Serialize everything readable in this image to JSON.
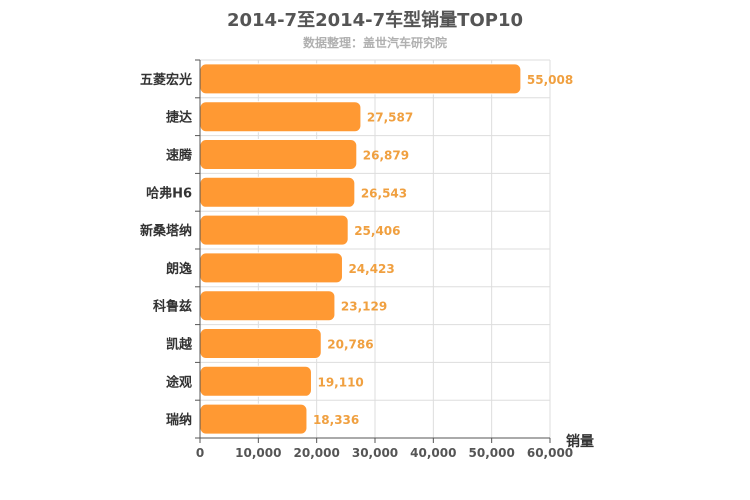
{
  "chart_data": {
    "type": "bar",
    "orientation": "horizontal",
    "title": "2014-7至2014-7车型销量TOP10",
    "subtitle": "数据整理：盖世汽车研究院",
    "xlabel": "销量",
    "ylabel": "",
    "categories": [
      "五菱宏光",
      "捷达",
      "速腾",
      "哈弗H6",
      "新桑塔纳",
      "朗逸",
      "科鲁兹",
      "凯越",
      "途观",
      "瑞纳"
    ],
    "values": [
      55008,
      27587,
      26879,
      26543,
      25406,
      24423,
      23129,
      20786,
      19110,
      18336
    ],
    "value_labels": [
      "55,008",
      "27,587",
      "26,879",
      "26,543",
      "25,406",
      "24,423",
      "23,129",
      "20,786",
      "19,110",
      "18,336"
    ],
    "xlim": [
      0,
      60000
    ],
    "xticks": [
      0,
      10000,
      20000,
      30000,
      40000,
      50000,
      60000
    ],
    "xtick_labels": [
      "0",
      "10,000",
      "20,000",
      "30,000",
      "40,000",
      "50,000",
      "60,000"
    ],
    "grid": true,
    "legend": "none",
    "colors": {
      "bar": "#ff9933",
      "bar_stroke": "#ffffff",
      "value_label": "#f0a040",
      "grid": "#dddddd",
      "axis": "#555555"
    }
  }
}
